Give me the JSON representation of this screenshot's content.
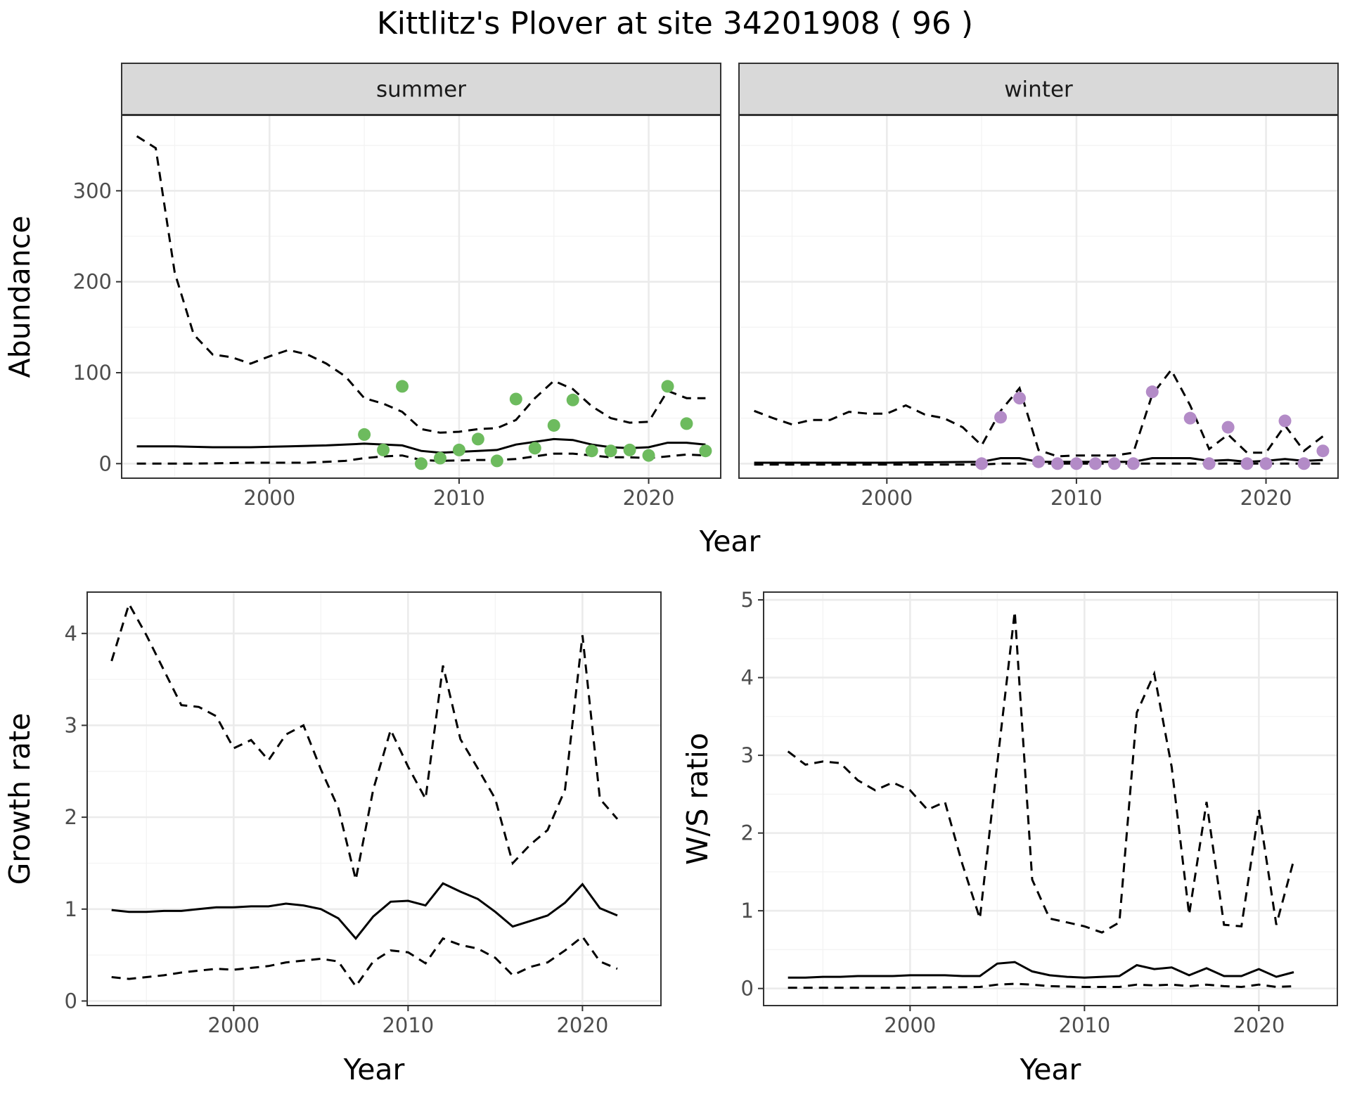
{
  "title": "Kittlitz's Plover at site 34201908 ( 96 )",
  "colors": {
    "summer_points": "#6dbb5e",
    "winter_points": "#b38bc7",
    "lines": "#000000"
  },
  "chart_data": [
    {
      "type": "line",
      "panel": "summer",
      "strip": "summer",
      "xlabel": "Year",
      "ylabel": "Abundance",
      "xlim": [
        1992.2,
        2023.8
      ],
      "ylim": [
        -16,
        383
      ],
      "x_ticks": [
        2000,
        2010,
        2020
      ],
      "y_ticks": [
        0,
        100,
        200,
        300
      ],
      "grid": true,
      "series": [
        {
          "role": "estimate",
          "style": "solid",
          "x": [
            1993,
            1995,
            1997,
            1999,
            2001,
            2003,
            2005,
            2007,
            2008,
            2009,
            2011,
            2012,
            2013,
            2015,
            2016,
            2017,
            2018,
            2019,
            2020,
            2021,
            2022,
            2023
          ],
          "y": [
            19,
            19,
            18,
            18,
            19,
            20,
            22,
            20,
            14,
            12,
            14,
            15,
            21,
            27,
            26,
            21,
            18,
            17,
            18,
            23,
            23,
            21
          ]
        },
        {
          "role": "upper",
          "style": "dashed",
          "x": [
            1993,
            1994,
            1995,
            1996,
            1997,
            1998,
            1999,
            2000,
            2001,
            2002,
            2003,
            2004,
            2005,
            2006,
            2007,
            2008,
            2009,
            2010,
            2011,
            2012,
            2013,
            2014,
            2015,
            2016,
            2017,
            2018,
            2019,
            2020,
            2021,
            2022,
            2023
          ],
          "y": [
            360,
            347,
            210,
            142,
            120,
            117,
            110,
            118,
            125,
            120,
            110,
            96,
            72,
            66,
            57,
            38,
            34,
            35,
            38,
            39,
            48,
            72,
            91,
            82,
            63,
            50,
            45,
            46,
            80,
            72,
            72
          ]
        },
        {
          "role": "lower",
          "style": "dashed",
          "x": [
            1993,
            1996,
            1999,
            2002,
            2004,
            2005,
            2006,
            2007,
            2008,
            2009,
            2011,
            2012,
            2013,
            2014,
            2015,
            2016,
            2017,
            2018,
            2019,
            2020,
            2021,
            2022,
            2023
          ],
          "y": [
            0,
            0,
            1,
            1,
            3,
            6,
            8,
            9,
            4,
            3,
            4,
            4,
            5,
            8,
            11,
            11,
            9,
            7,
            7,
            6,
            8,
            10,
            9
          ]
        }
      ],
      "points": {
        "x": [
          2005,
          2006,
          2007,
          2008,
          2009,
          2010,
          2011,
          2012,
          2013,
          2014,
          2015,
          2016,
          2017,
          2018,
          2019,
          2020,
          2021,
          2022,
          2023
        ],
        "y": [
          32,
          15,
          85,
          0,
          6,
          15,
          27,
          3,
          71,
          17,
          42,
          70,
          14,
          14,
          15,
          9,
          85,
          44,
          14
        ]
      }
    },
    {
      "type": "line",
      "panel": "winter",
      "strip": "winter",
      "xlabel": "Year",
      "ylabel": "Abundance",
      "xlim": [
        1992.2,
        2023.8
      ],
      "ylim": [
        -16,
        383
      ],
      "x_ticks": [
        2000,
        2010,
        2020
      ],
      "y_ticks": [
        0,
        100,
        200,
        300
      ],
      "grid": true,
      "series": [
        {
          "role": "estimate",
          "style": "solid",
          "x": [
            1993,
            2000,
            2005,
            2006,
            2007,
            2008,
            2013,
            2014,
            2015,
            2016,
            2017,
            2018,
            2019,
            2020,
            2021,
            2022,
            2023
          ],
          "y": [
            1,
            1,
            2,
            6,
            6,
            2,
            2,
            6,
            6,
            6,
            3,
            4,
            2,
            3,
            5,
            3,
            4
          ]
        },
        {
          "role": "upper",
          "style": "dashed",
          "x": [
            1993,
            1994,
            1995,
            1996,
            1997,
            1998,
            1999,
            2000,
            2001,
            2002,
            2003,
            2004,
            2005,
            2006,
            2007,
            2008,
            2009,
            2010,
            2011,
            2012,
            2013,
            2014,
            2015,
            2016,
            2017,
            2018,
            2019,
            2020,
            2021,
            2022,
            2023
          ],
          "y": [
            58,
            50,
            43,
            48,
            48,
            57,
            55,
            55,
            64,
            54,
            50,
            40,
            20,
            58,
            83,
            15,
            8,
            9,
            9,
            9,
            12,
            76,
            103,
            64,
            16,
            32,
            12,
            12,
            42,
            14,
            30
          ]
        },
        {
          "role": "lower",
          "style": "dashed",
          "x": [
            1993,
            2005,
            2006,
            2010,
            2015,
            2020,
            2023
          ],
          "y": [
            -1,
            -1,
            0,
            0,
            0,
            0,
            0
          ]
        }
      ],
      "points": {
        "x": [
          2005,
          2006,
          2007,
          2008,
          2009,
          2010,
          2011,
          2012,
          2013,
          2014,
          2016,
          2017,
          2018,
          2019,
          2020,
          2021,
          2022,
          2023
        ],
        "y": [
          0,
          51,
          72,
          2,
          0,
          0,
          0,
          0,
          0,
          79,
          50,
          0,
          40,
          0,
          0,
          47,
          0,
          14
        ]
      }
    },
    {
      "type": "line",
      "panel": "growth",
      "xlabel": "Year",
      "ylabel": "Growth rate",
      "xlim": [
        1991.6,
        2024.5
      ],
      "ylim": [
        -0.05,
        4.45
      ],
      "x_ticks": [
        2000,
        2010,
        2020
      ],
      "y_ticks": [
        0,
        1,
        2,
        3,
        4
      ],
      "grid": true,
      "series": [
        {
          "role": "estimate",
          "style": "solid",
          "x": [
            1993,
            1994,
            1995,
            1996,
            1997,
            1998,
            1999,
            2000,
            2001,
            2002,
            2003,
            2004,
            2005,
            2006,
            2007,
            2008,
            2009,
            2010,
            2011,
            2012,
            2013,
            2014,
            2015,
            2016,
            2017,
            2018,
            2019,
            2020,
            2021,
            2022
          ],
          "y": [
            0.99,
            0.97,
            0.97,
            0.98,
            0.98,
            1.0,
            1.02,
            1.02,
            1.03,
            1.03,
            1.06,
            1.04,
            1.0,
            0.9,
            0.68,
            0.92,
            1.08,
            1.09,
            1.04,
            1.28,
            1.19,
            1.11,
            0.97,
            0.81,
            0.87,
            0.93,
            1.07,
            1.27,
            1.01,
            0.93
          ]
        },
        {
          "role": "upper",
          "style": "dashed",
          "x": [
            1993,
            1994,
            1995,
            1996,
            1997,
            1998,
            1999,
            2000,
            2001,
            2002,
            2003,
            2004,
            2005,
            2006,
            2007,
            2008,
            2009,
            2010,
            2011,
            2012,
            2013,
            2014,
            2015,
            2016,
            2017,
            2018,
            2019,
            2020,
            2021,
            2022
          ],
          "y": [
            3.7,
            4.32,
            3.98,
            3.6,
            3.22,
            3.2,
            3.1,
            2.75,
            2.84,
            2.62,
            2.9,
            3.0,
            2.52,
            2.1,
            1.32,
            2.3,
            2.95,
            2.55,
            2.2,
            3.65,
            2.85,
            2.53,
            2.2,
            1.5,
            1.7,
            1.86,
            2.3,
            3.98,
            2.2,
            1.98
          ]
        },
        {
          "role": "lower",
          "style": "dashed",
          "x": [
            1993,
            1994,
            1995,
            1996,
            1997,
            1998,
            1999,
            2000,
            2001,
            2002,
            2003,
            2004,
            2005,
            2006,
            2007,
            2008,
            2009,
            2010,
            2011,
            2012,
            2013,
            2014,
            2015,
            2016,
            2017,
            2018,
            2019,
            2020,
            2021,
            2022
          ],
          "y": [
            0.26,
            0.24,
            0.26,
            0.28,
            0.31,
            0.33,
            0.35,
            0.34,
            0.36,
            0.38,
            0.42,
            0.44,
            0.46,
            0.43,
            0.16,
            0.43,
            0.55,
            0.53,
            0.41,
            0.68,
            0.61,
            0.57,
            0.47,
            0.28,
            0.37,
            0.42,
            0.55,
            0.7,
            0.43,
            0.35
          ]
        }
      ]
    },
    {
      "type": "line",
      "panel": "ratio",
      "xlabel": "Year",
      "ylabel": "W/S ratio",
      "xlim": [
        1991.6,
        2024.5
      ],
      "ylim": [
        -0.22,
        5.1
      ],
      "x_ticks": [
        2000,
        2010,
        2020
      ],
      "y_ticks": [
        0,
        1,
        2,
        3,
        4,
        5
      ],
      "grid": true,
      "series": [
        {
          "role": "estimate",
          "style": "solid",
          "x": [
            1993,
            1994,
            1995,
            1996,
            1997,
            1998,
            1999,
            2000,
            2001,
            2002,
            2003,
            2004,
            2005,
            2006,
            2007,
            2008,
            2009,
            2010,
            2011,
            2012,
            2013,
            2014,
            2015,
            2016,
            2017,
            2018,
            2019,
            2020,
            2021,
            2022
          ],
          "y": [
            0.14,
            0.14,
            0.15,
            0.15,
            0.16,
            0.16,
            0.16,
            0.17,
            0.17,
            0.17,
            0.16,
            0.16,
            0.32,
            0.34,
            0.22,
            0.17,
            0.15,
            0.14,
            0.15,
            0.16,
            0.3,
            0.25,
            0.27,
            0.17,
            0.26,
            0.16,
            0.16,
            0.25,
            0.15,
            0.21
          ]
        },
        {
          "role": "upper",
          "style": "dashed",
          "x": [
            1993,
            1994,
            1995,
            1996,
            1997,
            1998,
            1999,
            2000,
            2001,
            2002,
            2003,
            2004,
            2005,
            2006,
            2007,
            2008,
            2009,
            2010,
            2011,
            2012,
            2013,
            2014,
            2015,
            2016,
            2017,
            2018,
            2019,
            2020,
            2021,
            2022
          ],
          "y": [
            3.05,
            2.88,
            2.92,
            2.9,
            2.68,
            2.55,
            2.65,
            2.55,
            2.3,
            2.4,
            1.6,
            0.9,
            2.9,
            4.85,
            1.4,
            0.9,
            0.85,
            0.8,
            0.72,
            0.85,
            3.55,
            4.05,
            2.85,
            0.95,
            2.4,
            0.82,
            0.8,
            2.3,
            0.82,
            1.65
          ]
        },
        {
          "role": "lower",
          "style": "dashed",
          "x": [
            1993,
            1996,
            2000,
            2004,
            2005,
            2006,
            2007,
            2008,
            2010,
            2012,
            2013,
            2014,
            2015,
            2016,
            2017,
            2018,
            2019,
            2020,
            2021,
            2022
          ],
          "y": [
            0.01,
            0.01,
            0.01,
            0.02,
            0.05,
            0.06,
            0.05,
            0.03,
            0.02,
            0.02,
            0.05,
            0.04,
            0.05,
            0.03,
            0.05,
            0.03,
            0.02,
            0.05,
            0.02,
            0.03
          ]
        }
      ]
    }
  ]
}
